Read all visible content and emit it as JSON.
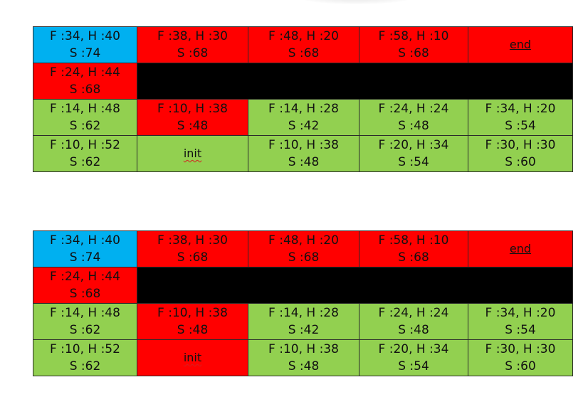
{
  "colors": {
    "start_cell": "#00b0f0",
    "closed_cell": "#ff0000",
    "open_cell": "#92d050",
    "wall": "#000000",
    "border": "#2b2b2b"
  },
  "grids": [
    {
      "rows": [
        [
          {
            "kind": "node",
            "color": "blue",
            "fh": "F :34, H :40",
            "s": "S :74"
          },
          {
            "kind": "node",
            "color": "red",
            "fh": "F :38, H :30",
            "s": "S :68"
          },
          {
            "kind": "node",
            "color": "red",
            "fh": "F :48, H :20",
            "s": "S :68"
          },
          {
            "kind": "node",
            "color": "red",
            "fh": "F :58, H :10",
            "s": "S :68"
          },
          {
            "kind": "label",
            "color": "red",
            "text": "end",
            "style": "underline"
          }
        ],
        [
          {
            "kind": "node",
            "color": "red",
            "fh": "F :24, H :44",
            "s": "S :68"
          },
          {
            "kind": "wall",
            "color": "black",
            "span": 4
          }
        ],
        [
          {
            "kind": "node",
            "color": "green",
            "fh": "F :14, H :48",
            "s": "S :62"
          },
          {
            "kind": "node",
            "color": "red",
            "fh": "F :10, H :38",
            "s": "S :48"
          },
          {
            "kind": "node",
            "color": "green",
            "fh": "F :14, H :28",
            "s": "S :42"
          },
          {
            "kind": "node",
            "color": "green",
            "fh": "F :24, H :24",
            "s": "S :48"
          },
          {
            "kind": "node",
            "color": "green",
            "fh": "F :34, H :20",
            "s": "S :54"
          }
        ],
        [
          {
            "kind": "node",
            "color": "green",
            "fh": "F :10, H :52",
            "s": "S :62"
          },
          {
            "kind": "label",
            "color": "green",
            "text": "init",
            "style": "squiggle"
          },
          {
            "kind": "node",
            "color": "green",
            "fh": "F :10, H :38",
            "s": "S :48"
          },
          {
            "kind": "node",
            "color": "green",
            "fh": "F :20, H :34",
            "s": "S :54"
          },
          {
            "kind": "node",
            "color": "green",
            "fh": "F :30, H :30",
            "s": "S :60"
          }
        ]
      ]
    },
    {
      "rows": [
        [
          {
            "kind": "node",
            "color": "blue",
            "fh": "F :34, H :40",
            "s": "S :74"
          },
          {
            "kind": "node",
            "color": "red",
            "fh": "F :38, H :30",
            "s": "S :68"
          },
          {
            "kind": "node",
            "color": "red",
            "fh": "F :48, H :20",
            "s": "S :68"
          },
          {
            "kind": "node",
            "color": "red",
            "fh": "F :58, H :10",
            "s": "S :68"
          },
          {
            "kind": "label",
            "color": "red",
            "text": "end",
            "style": "underline"
          }
        ],
        [
          {
            "kind": "node",
            "color": "red",
            "fh": "F :24, H :44",
            "s": "S :68"
          },
          {
            "kind": "wall",
            "color": "black",
            "span": 4
          }
        ],
        [
          {
            "kind": "node",
            "color": "green",
            "fh": "F :14, H :48",
            "s": "S :62"
          },
          {
            "kind": "node",
            "color": "red",
            "fh": "F :10, H :38",
            "s": "S :48"
          },
          {
            "kind": "node",
            "color": "green",
            "fh": "F :14, H :28",
            "s": "S :42"
          },
          {
            "kind": "node",
            "color": "green",
            "fh": "F :24, H :24",
            "s": "S :48"
          },
          {
            "kind": "node",
            "color": "green",
            "fh": "F :34, H :20",
            "s": "S :54"
          }
        ],
        [
          {
            "kind": "node",
            "color": "green",
            "fh": "F :10, H :52",
            "s": "S :62"
          },
          {
            "kind": "label",
            "color": "red",
            "text": "init",
            "style": "squiggle"
          },
          {
            "kind": "node",
            "color": "green",
            "fh": "F :10, H :38",
            "s": "S :48"
          },
          {
            "kind": "node",
            "color": "green",
            "fh": "F :20, H :34",
            "s": "S :54"
          },
          {
            "kind": "node",
            "color": "green",
            "fh": "F :30, H :30",
            "s": "S :60"
          }
        ]
      ]
    }
  ]
}
